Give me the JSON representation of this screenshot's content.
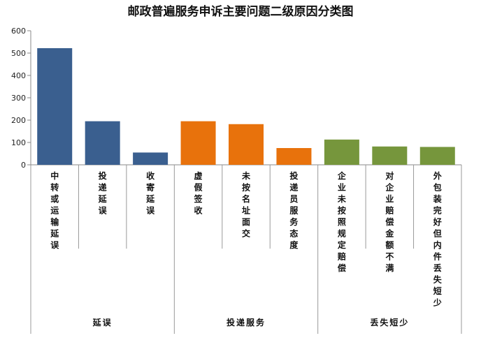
{
  "chart_data": {
    "type": "bar",
    "title": "邮政普遍服务申诉主要问题二级原因分类图",
    "ylim": [
      0,
      600
    ],
    "yticks": [
      0,
      100,
      200,
      300,
      400,
      500,
      600
    ],
    "grid": false,
    "legend": "none",
    "categories": [
      "中转或运输延误",
      "投递延误",
      "收寄延误",
      "虚假签收",
      "未按名址面交",
      "投递员服务态度",
      "企业未按照规定赔偿",
      "对企业赔偿金额不满",
      "外包装完好但内件丢失短少"
    ],
    "values": [
      522,
      195,
      55,
      195,
      182,
      75,
      113,
      82,
      80
    ],
    "groups": [
      {
        "name": "延误",
        "count": 3,
        "color": "#3a5f8f"
      },
      {
        "name": "投递服务",
        "count": 3,
        "color": "#e8720c"
      },
      {
        "name": "丢失短少",
        "count": 3,
        "color": "#76963c"
      }
    ]
  }
}
